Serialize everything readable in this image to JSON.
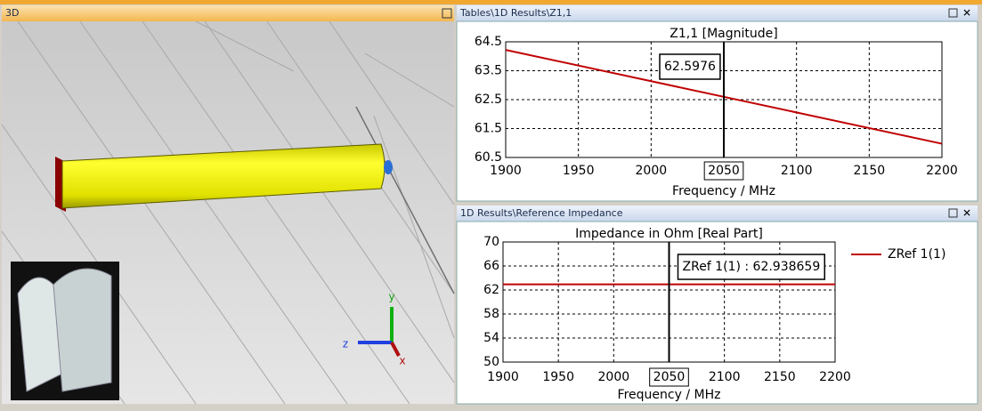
{
  "window": {
    "panel_titles": [
      "3D",
      "Tables\\1D Results\\Z1,1",
      "1D Results\\Reference Impedance"
    ]
  },
  "scene": {
    "axis_labels": [
      "y",
      "z",
      "x"
    ]
  },
  "chart_data": [
    {
      "type": "line",
      "title": "Z1,1 [Magnitude]",
      "x_label": "Frequency / MHz",
      "xlim": [
        1900,
        2200
      ],
      "xticks": [
        1900,
        1950,
        2000,
        2050,
        2100,
        2150,
        2200
      ],
      "ylim": [
        60.5,
        64.5
      ],
      "yticks": [
        60.5,
        61.5,
        62.5,
        63.5,
        64.5
      ],
      "grid": true,
      "series": [
        {
          "color": "#c00000",
          "x": [
            1900,
            2200
          ],
          "values": [
            64.22,
            60.975
          ]
        }
      ],
      "marker": {
        "x": 2050,
        "y": 62.5976
      }
    },
    {
      "type": "line",
      "title": "Impedance in Ohm [Real Part]",
      "x_label": "Frequency / MHz",
      "xlim": [
        1900,
        2200
      ],
      "xticks": [
        1900,
        1950,
        2000,
        2050,
        2100,
        2150,
        2200
      ],
      "ylim": [
        50,
        70
      ],
      "yticks": [
        50,
        54,
        58,
        62,
        66,
        70
      ],
      "grid": true,
      "legend": "right",
      "series": [
        {
          "name": "ZRef 1(1)",
          "color": "#c00000",
          "x": [
            1900,
            2200
          ],
          "values": [
            62.938659,
            62.938659
          ]
        }
      ],
      "marker": {
        "x": 2050,
        "y": 62.938659,
        "label": "ZRef 1(1) : 62.938659"
      }
    }
  ]
}
